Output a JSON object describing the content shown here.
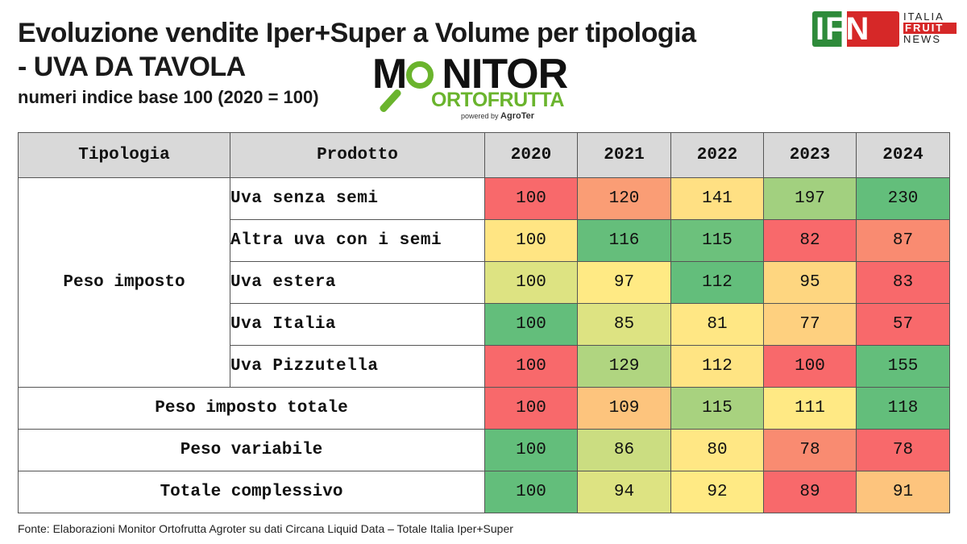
{
  "title_line1": "Evoluzione vendite Iper+Super a Volume per tipologia",
  "title_line2": "- UVA DA TAVOLA",
  "subtitle": "numeri indice base 100 (2020 = 100)",
  "logos": {
    "monitor_word": "M",
    "monitor_word_rest": "NITOR",
    "ortofrutta_word": "ORTOFRUTTA",
    "powered_by": "powered by",
    "agroter": "AgroTer",
    "ifn": "IFN",
    "ifn_line1": "ITALIA",
    "ifn_line2": "FRUIT",
    "ifn_line3": "NEWS"
  },
  "table": {
    "headers": [
      "Tipologia",
      "Prodotto",
      "2020",
      "2021",
      "2022",
      "2023",
      "2024"
    ],
    "group_peso_imposto": "Peso imposto",
    "rows": [
      {
        "product": "Uva senza semi",
        "values": [
          100,
          120,
          141,
          197,
          230
        ],
        "colors": [
          "#f8696b",
          "#fa9d75",
          "#ffe083",
          "#a2d07f",
          "#63be7b"
        ]
      },
      {
        "product": "Altra uva con i semi",
        "values": [
          100,
          116,
          115,
          82,
          87
        ],
        "colors": [
          "#ffe583",
          "#65be7b",
          "#6cc17c",
          "#f8696b",
          "#f98b71"
        ]
      },
      {
        "product": "Uva estera",
        "values": [
          100,
          97,
          112,
          95,
          83
        ],
        "colors": [
          "#dde382",
          "#ffea84",
          "#63be7b",
          "#fed680",
          "#f8696b"
        ]
      },
      {
        "product": "Uva Italia",
        "values": [
          100,
          85,
          81,
          77,
          57
        ],
        "colors": [
          "#63be7b",
          "#dde382",
          "#ffe784",
          "#fed07f",
          "#f8696b"
        ]
      },
      {
        "product": "Uva Pizzutella",
        "values": [
          100,
          129,
          112,
          100,
          155
        ],
        "colors": [
          "#f8696b",
          "#b0d580",
          "#ffe483",
          "#f8696b",
          "#63be7b"
        ]
      }
    ],
    "summary": [
      {
        "label": "Peso imposto totale",
        "values": [
          100,
          109,
          115,
          111,
          118
        ],
        "colors": [
          "#f8696b",
          "#fdc47d",
          "#a8d27f",
          "#ffe984",
          "#63be7b"
        ]
      },
      {
        "label": "Peso variabile",
        "values": [
          100,
          86,
          80,
          78,
          78
        ],
        "colors": [
          "#63be7b",
          "#cbdd81",
          "#ffe784",
          "#f98b71",
          "#f8696b"
        ]
      },
      {
        "label": "Totale complessivo",
        "values": [
          100,
          94,
          92,
          89,
          91
        ],
        "colors": [
          "#63be7b",
          "#dde382",
          "#ffea84",
          "#f8696b",
          "#fdc47d"
        ]
      }
    ]
  },
  "footer": "Fonte: Elaborazioni Monitor Ortofrutta Agroter su dati Circana Liquid Data – Totale Italia Iper+Super"
}
